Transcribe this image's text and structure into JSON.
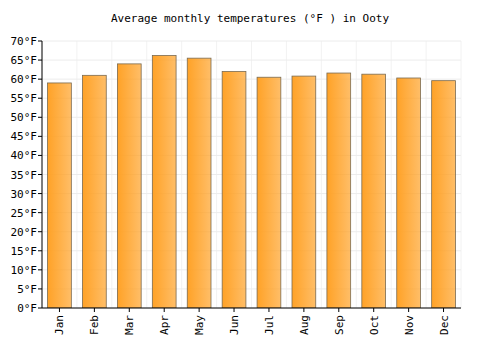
{
  "chart_data": {
    "type": "bar",
    "title": "Average monthly temperatures (°F ) in Ooty",
    "categories": [
      "Jan",
      "Feb",
      "Mar",
      "Apr",
      "May",
      "Jun",
      "Jul",
      "Aug",
      "Sep",
      "Oct",
      "Nov",
      "Dec"
    ],
    "values": [
      59,
      61,
      64,
      66.2,
      65.5,
      62,
      60.5,
      60.8,
      61.6,
      61.3,
      60.3,
      59.6
    ],
    "color": "#ffa227",
    "ylim": [
      0,
      70
    ],
    "yticks": [
      {
        "value": 0,
        "label": "0°F"
      },
      {
        "value": 5,
        "label": "5°F"
      },
      {
        "value": 10,
        "label": "10°F"
      },
      {
        "value": 15,
        "label": "15°F"
      },
      {
        "value": 20,
        "label": "20°F"
      },
      {
        "value": 25,
        "label": "25°F"
      },
      {
        "value": 30,
        "label": "30°F"
      },
      {
        "value": 35,
        "label": "35°F"
      },
      {
        "value": 40,
        "label": "40°F"
      },
      {
        "value": 45,
        "label": "45°F"
      },
      {
        "value": 50,
        "label": "50°F"
      },
      {
        "value": 55,
        "label": "55°F"
      },
      {
        "value": 60,
        "label": "60°F"
      },
      {
        "value": 65,
        "label": "65°F"
      },
      {
        "value": 70,
        "label": "70°F"
      }
    ],
    "grid": true
  }
}
